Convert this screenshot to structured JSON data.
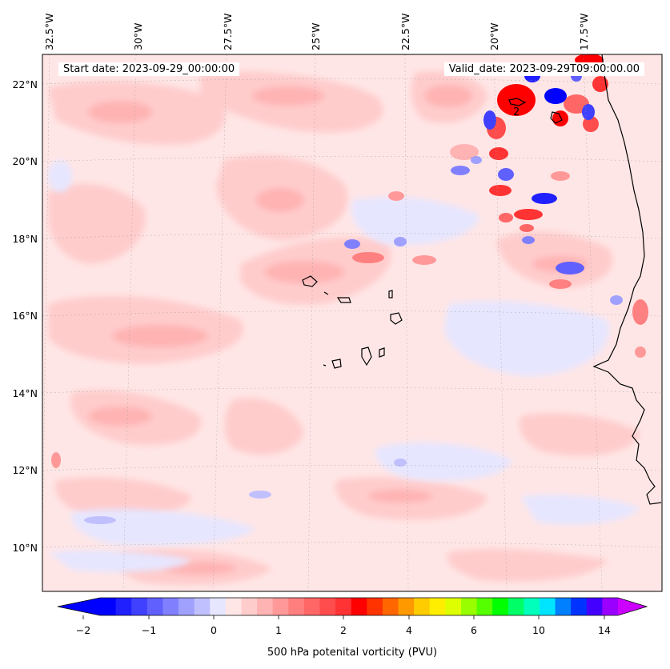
{
  "map": {
    "start_date_text": "Start date: 2023-09-29_00:00:00",
    "valid_date_text": "Valid_date: 2023-09-29T09:00:00.00",
    "lon_labels": [
      "32.5°W",
      "30°W",
      "27.5°W",
      "25°W",
      "22.5°W",
      "20°W",
      "17.5°W"
    ],
    "lat_labels": [
      "22°N",
      "20°N",
      "18°N",
      "16°N",
      "14°N",
      "12°N",
      "10°N"
    ],
    "contour_label": "2",
    "colors": {
      "background_field": "#ffe6e6",
      "light_pink": "#ffcccc",
      "pink": "#ffb3b3",
      "red": "#ff3333",
      "blue": "#3333ff",
      "light_blue": "#e6e6ff",
      "coastline": "#000000"
    }
  },
  "colorbar": {
    "title": "500 hPa potenital vorticity (PVU)",
    "tick_labels": [
      "−2",
      "−1",
      "0",
      "1",
      "2",
      "4",
      "6",
      "10",
      "14"
    ],
    "colors": [
      "#0000ff",
      "#2020ff",
      "#4040ff",
      "#6060ff",
      "#8080ff",
      "#a0a0ff",
      "#c0c0ff",
      "#e6e6ff",
      "#ffe6e6",
      "#ffcccc",
      "#ffb3b3",
      "#ff9999",
      "#ff7f7f",
      "#ff6666",
      "#ff4c4c",
      "#ff3333",
      "#ff0000",
      "#ff3300",
      "#ff6600",
      "#ff9900",
      "#ffcc00",
      "#ffee00",
      "#ddff00",
      "#99ff00",
      "#55ff00",
      "#00ff00",
      "#00ff66",
      "#00ffbb",
      "#00e5ff",
      "#0080ff",
      "#0033ff",
      "#4400ff",
      "#9900ff"
    ],
    "arrow_low_color": "#0000ff",
    "arrow_high_color": "#cc00ff"
  }
}
